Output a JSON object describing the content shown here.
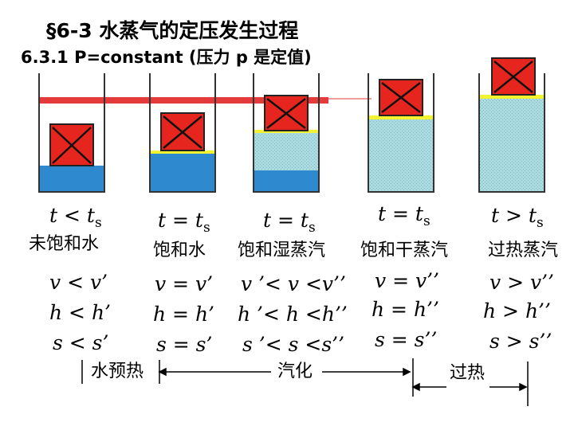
{
  "title": "§6-3 水蒸气的定压发生过程",
  "subtitle": "6.3.1 P=constant (压力 p 是定值)",
  "colors": {
    "weight_red": "#e6261e",
    "water_blue": "#2e89cf",
    "steam_teal": "#a9dbe0",
    "wall_gray": "#333333",
    "yellow_gap": "#f3f332",
    "pressure_bar": "#e43a3a"
  },
  "states": [
    {
      "temp": "t < ts",
      "temp_var": "t",
      "temp_op": "<",
      "temp_base": "t",
      "temp_sub": "s",
      "name": "未饱和水",
      "v": "v < v’",
      "h": "h < h’",
      "s": "s < s’"
    },
    {
      "temp": "t = ts",
      "temp_var": "t",
      "temp_op": "=",
      "temp_base": "t",
      "temp_sub": "s",
      "name": "饱和水",
      "v": "v = v’",
      "h": "h = h’",
      "s": "s = s’"
    },
    {
      "temp": "t = ts",
      "temp_var": "t",
      "temp_op": "=",
      "temp_base": "t",
      "temp_sub": "s",
      "name": "饱和湿蒸汽",
      "v": "v ’< v <v’’",
      "h": "h ’< h <h’’",
      "s": "s ’< s <s’’"
    },
    {
      "temp": "t = ts",
      "temp_var": "t",
      "temp_op": "=",
      "temp_base": "t",
      "temp_sub": "s",
      "name": "饱和干蒸汽",
      "v": "v = v’’",
      "h": "h = h’’",
      "s": "s = s’’"
    },
    {
      "temp": "t > ts",
      "temp_var": "t",
      "temp_op": ">",
      "temp_base": "t",
      "temp_sub": "s",
      "name": "过热蒸汽",
      "v": "v > v’’",
      "h": "h > h’’",
      "s": "s > s’’"
    }
  ],
  "processes": [
    {
      "label": "水预热"
    },
    {
      "label": "汽化"
    },
    {
      "label": "过热"
    }
  ]
}
